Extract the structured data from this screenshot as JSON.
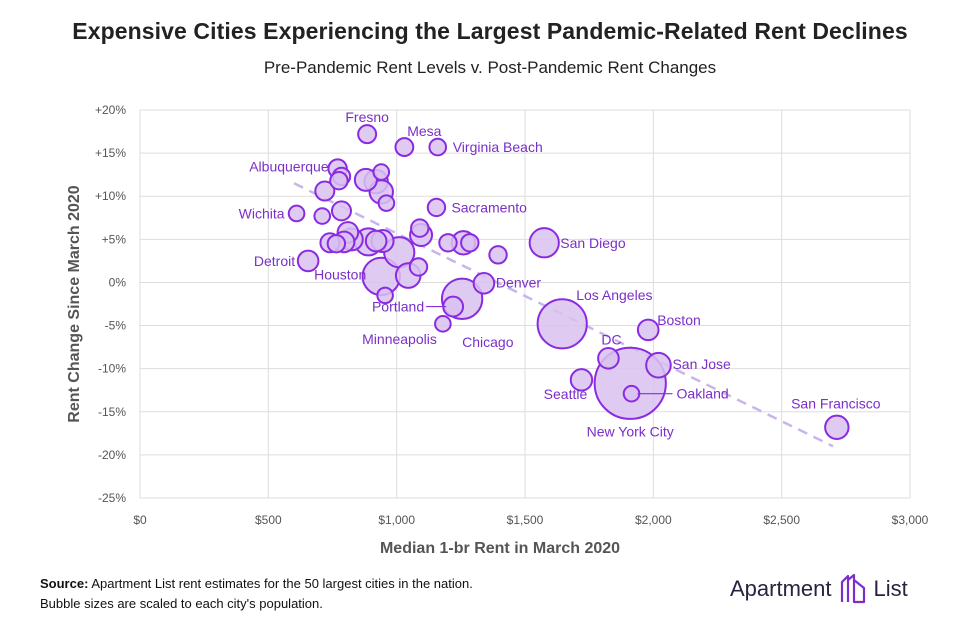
{
  "header": {
    "title": "Expensive Cities Experiencing the Largest Pandemic-Related Rent Declines",
    "subtitle": "Pre-Pandemic Rent Levels v. Post-Pandemic Rent Changes"
  },
  "footer": {
    "source_label": "Source:",
    "source_text": "Apartment List rent estimates for the 50 largest cities in the nation.",
    "note": "Bubble sizes are scaled to each city's population."
  },
  "brand": {
    "name_part1": "Apartment",
    "name_part2": "List"
  },
  "colors": {
    "bubble_fill": "#d9c2f0",
    "bubble_stroke": "#8a2be2",
    "label": "#7b2fc9",
    "trend": "#c9b4ec",
    "grid": "#dddddd",
    "axis_text": "#555555"
  },
  "chart_data": {
    "type": "scatter",
    "title": "Expensive Cities Experiencing the Largest Pandemic-Related Rent Declines",
    "subtitle": "Pre-Pandemic Rent Levels v. Post-Pandemic Rent Changes",
    "xlabel": "Median 1-br Rent in March 2020",
    "ylabel": "Rent Change Since March 2020",
    "xlim": [
      0,
      3000
    ],
    "ylim": [
      -25,
      20
    ],
    "xticks": [
      0,
      500,
      1000,
      1500,
      2000,
      2500,
      3000
    ],
    "xtick_labels": [
      "$0",
      "$500",
      "$1,000",
      "$1,500",
      "$2,000",
      "$2,500",
      "$3,000"
    ],
    "yticks": [
      20,
      15,
      10,
      5,
      0,
      -5,
      -10,
      -15,
      -20,
      -25
    ],
    "ytick_labels": [
      "+20%",
      "+15%",
      "+10%",
      "+5%",
      "0%",
      "-5%",
      "-10%",
      "-15%",
      "-20%",
      "-25%"
    ],
    "grid": true,
    "trendline": {
      "x": [
        600,
        2700
      ],
      "y": [
        11.5,
        -19
      ]
    },
    "points": [
      {
        "name": "Fresno",
        "x": 885,
        "y": 17.2,
        "pop": 0.53
      },
      {
        "name": "Mesa",
        "x": 1030,
        "y": 15.7,
        "pop": 0.52
      },
      {
        "name": "Virginia Beach",
        "x": 1160,
        "y": 15.7,
        "pop": 0.45
      },
      {
        "name": "Albuquerque",
        "x": 770,
        "y": 13.2,
        "pop": 0.56
      },
      {
        "name": "",
        "x": 785,
        "y": 12.3,
        "pop": 0.5
      },
      {
        "name": "",
        "x": 775,
        "y": 11.8,
        "pop": 0.5
      },
      {
        "name": "",
        "x": 720,
        "y": 10.6,
        "pop": 0.6
      },
      {
        "name": "",
        "x": 880,
        "y": 11.9,
        "pop": 0.8
      },
      {
        "name": "",
        "x": 920,
        "y": 11.7,
        "pop": 0.9
      },
      {
        "name": "",
        "x": 940,
        "y": 12.8,
        "pop": 0.4
      },
      {
        "name": "",
        "x": 940,
        "y": 10.5,
        "pop": 0.9
      },
      {
        "name": "",
        "x": 960,
        "y": 9.2,
        "pop": 0.4
      },
      {
        "name": "Wichita",
        "x": 610,
        "y": 8.0,
        "pop": 0.4
      },
      {
        "name": "",
        "x": 710,
        "y": 7.7,
        "pop": 0.4
      },
      {
        "name": "",
        "x": 785,
        "y": 8.3,
        "pop": 0.6
      },
      {
        "name": "Sacramento",
        "x": 1155,
        "y": 8.7,
        "pop": 0.5
      },
      {
        "name": "",
        "x": 1090,
        "y": 6.3,
        "pop": 0.5
      },
      {
        "name": "",
        "x": 1095,
        "y": 5.5,
        "pop": 0.8
      },
      {
        "name": "",
        "x": 810,
        "y": 5.8,
        "pop": 0.7
      },
      {
        "name": "",
        "x": 740,
        "y": 4.6,
        "pop": 0.6
      },
      {
        "name": "",
        "x": 765,
        "y": 4.5,
        "pop": 0.5
      },
      {
        "name": "",
        "x": 795,
        "y": 4.7,
        "pop": 0.7
      },
      {
        "name": "",
        "x": 825,
        "y": 5.0,
        "pop": 0.8
      },
      {
        "name": "",
        "x": 890,
        "y": 4.7,
        "pop": 1.2
      },
      {
        "name": "",
        "x": 920,
        "y": 4.8,
        "pop": 0.7
      },
      {
        "name": "",
        "x": 945,
        "y": 4.8,
        "pop": 0.8
      },
      {
        "name": "",
        "x": 1010,
        "y": 3.5,
        "pop": 1.5
      },
      {
        "name": "",
        "x": 1200,
        "y": 4.6,
        "pop": 0.5
      },
      {
        "name": "",
        "x": 1260,
        "y": 4.6,
        "pop": 0.9
      },
      {
        "name": "",
        "x": 1285,
        "y": 4.6,
        "pop": 0.5
      },
      {
        "name": "",
        "x": 1395,
        "y": 3.2,
        "pop": 0.5
      },
      {
        "name": "San Diego",
        "x": 1575,
        "y": 4.6,
        "pop": 1.4
      },
      {
        "name": "Detroit",
        "x": 655,
        "y": 2.5,
        "pop": 0.7
      },
      {
        "name": "Houston",
        "x": 940,
        "y": 0.7,
        "pop": 2.3
      },
      {
        "name": "",
        "x": 1045,
        "y": 0.8,
        "pop": 1.0
      },
      {
        "name": "",
        "x": 1085,
        "y": 1.8,
        "pop": 0.5
      },
      {
        "name": "Denver",
        "x": 1340,
        "y": -0.1,
        "pop": 0.7
      },
      {
        "name": "",
        "x": 955,
        "y": -1.5,
        "pop": 0.4
      },
      {
        "name": "Portland",
        "x": 1220,
        "y": -2.8,
        "pop": 0.65
      },
      {
        "name": "Chicago",
        "x": 1255,
        "y": -1.9,
        "pop": 2.7
      },
      {
        "name": "Minneapolis",
        "x": 1180,
        "y": -4.8,
        "pop": 0.4
      },
      {
        "name": "Los Angeles",
        "x": 1645,
        "y": -4.8,
        "pop": 4.0
      },
      {
        "name": "Boston",
        "x": 1980,
        "y": -5.5,
        "pop": 0.7
      },
      {
        "name": "DC",
        "x": 1825,
        "y": -8.8,
        "pop": 0.7
      },
      {
        "name": "San Jose",
        "x": 2020,
        "y": -9.6,
        "pop": 1.0
      },
      {
        "name": "Seattle",
        "x": 1720,
        "y": -11.3,
        "pop": 0.75
      },
      {
        "name": "New York City",
        "x": 1910,
        "y": -11.7,
        "pop": 8.4
      },
      {
        "name": "Oakland",
        "x": 1915,
        "y": -12.9,
        "pop": 0.4
      },
      {
        "name": "San Francisco",
        "x": 2715,
        "y": -16.8,
        "pop": 0.9
      }
    ]
  }
}
